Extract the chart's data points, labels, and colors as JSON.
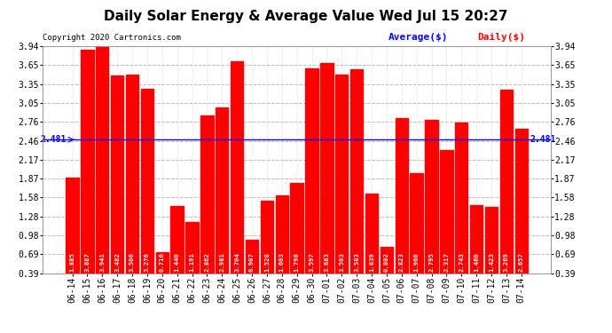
{
  "title": "Daily Solar Energy & Average Value Wed Jul 15 20:27",
  "copyright": "Copyright 2020 Cartronics.com",
  "average_label": "Average($)",
  "daily_label": "Daily($)",
  "average_value": 2.481,
  "bar_color": "#ff0000",
  "average_line_color": "#0000ff",
  "categories": [
    "06-14",
    "06-15",
    "06-16",
    "06-17",
    "06-18",
    "06-19",
    "06-20",
    "06-21",
    "06-22",
    "06-23",
    "06-24",
    "06-25",
    "06-26",
    "06-27",
    "06-28",
    "06-29",
    "06-30",
    "07-01",
    "07-02",
    "07-03",
    "07-04",
    "07-05",
    "07-06",
    "07-07",
    "07-08",
    "07-09",
    "07-10",
    "07-11",
    "07-12",
    "07-13",
    "07-14"
  ],
  "values": [
    1.885,
    3.887,
    3.941,
    3.482,
    3.506,
    3.276,
    0.716,
    1.44,
    1.191,
    2.862,
    2.981,
    3.704,
    0.907,
    1.528,
    1.603,
    1.798,
    3.597,
    3.683,
    3.503,
    3.583,
    1.639,
    0.802,
    2.823,
    1.96,
    2.795,
    2.317,
    2.743,
    1.46,
    1.423,
    3.269,
    2.657
  ],
  "ylim_min": 0.39,
  "ylim_max": 3.94,
  "yticks": [
    0.39,
    0.69,
    0.98,
    1.28,
    1.58,
    1.87,
    2.17,
    2.46,
    2.76,
    3.05,
    3.35,
    3.65,
    3.94
  ],
  "background_color": "#ffffff",
  "grid_color": "#bbbbbb",
  "title_fontsize": 11,
  "tick_fontsize": 7,
  "value_fontsize": 5.2,
  "copyright_fontsize": 6.5,
  "legend_fontsize": 8
}
